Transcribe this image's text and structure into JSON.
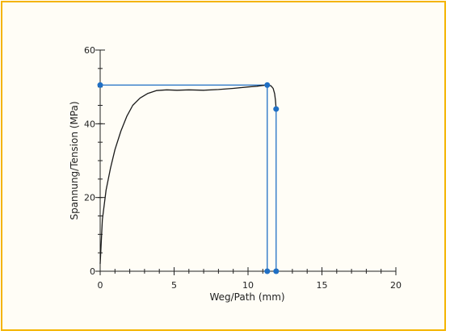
{
  "chart_data": {
    "type": "line",
    "title": "",
    "xlabel": "Weg/Path (mm)",
    "ylabel": "Spannung/Tension (MPa)",
    "xlim": [
      0,
      20
    ],
    "ylim": [
      0,
      60
    ],
    "x_major_ticks": [
      0,
      5,
      10,
      15,
      20
    ],
    "x_minor_step": 1,
    "y_major_ticks": [
      0,
      20,
      40,
      60
    ],
    "y_minor_step": 5,
    "grid": false,
    "series": [
      {
        "x": [
          0,
          0.15,
          0.4,
          0.7,
          1.0,
          1.4,
          1.8,
          2.2,
          2.7,
          3.2,
          3.8,
          4.5,
          5.2,
          6.0,
          7.0,
          8.0,
          9.0,
          10.0,
          10.6,
          11.0,
          11.3,
          11.55,
          11.7,
          11.8,
          11.85,
          11.9
        ],
        "y": [
          2,
          14,
          22,
          28,
          33,
          38,
          42,
          45,
          47,
          48.2,
          49,
          49.2,
          49.1,
          49.2,
          49.1,
          49.3,
          49.6,
          50,
          50.2,
          50.4,
          50.5,
          50.3,
          49.6,
          48.2,
          46.5,
          44
        ]
      }
    ],
    "markers": [
      {
        "x": 0,
        "y": 50.5
      },
      {
        "x": 11.3,
        "y": 50.5
      },
      {
        "x": 11.9,
        "y": 44
      },
      {
        "x": 11.3,
        "y": 0
      },
      {
        "x": 11.9,
        "y": 0
      }
    ],
    "guides": [
      {
        "from": [
          0,
          50.5
        ],
        "to": [
          11.3,
          50.5
        ]
      },
      {
        "from": [
          11.3,
          50.5
        ],
        "to": [
          11.3,
          0
        ]
      },
      {
        "from": [
          11.9,
          44
        ],
        "to": [
          11.9,
          0
        ]
      }
    ],
    "colors": {
      "curve": "#1a1a1a",
      "marker": "#1f6fc4",
      "frame": "#f4b400",
      "axis": "#222222"
    }
  }
}
